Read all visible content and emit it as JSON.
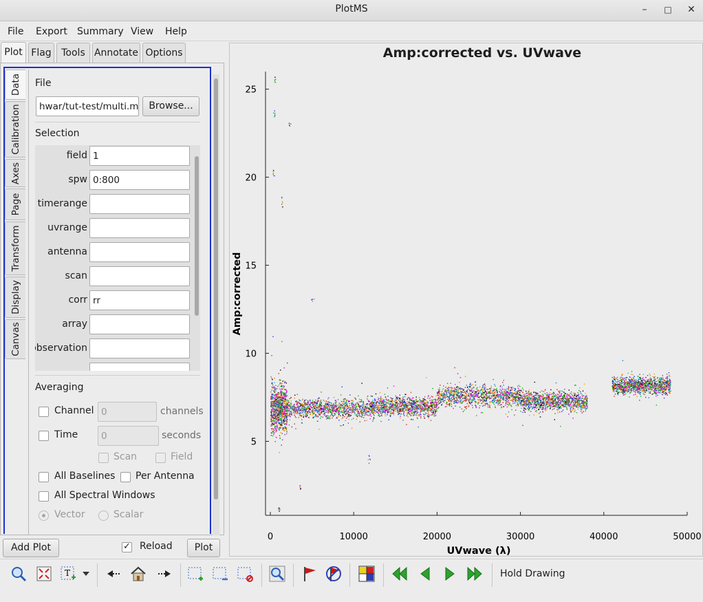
{
  "window": {
    "title": "PlotMS",
    "minimize": "–",
    "maximize": "□",
    "close": "✕"
  },
  "menu": [
    "File",
    "Export",
    "Summary",
    "View",
    "Help"
  ],
  "top_tabs": [
    "Plot",
    "Flag",
    "Tools",
    "Annotate",
    "Options"
  ],
  "side_tabs": [
    "Data",
    "Calibration",
    "Axes",
    "Page",
    "Transform",
    "Display",
    "Canvas"
  ],
  "data": {
    "file_section": "File",
    "file_value": "hwar/tut-test/multi.ms",
    "browse_label": "Browse...",
    "selection_section": "Selection",
    "selection": [
      {
        "label": "field",
        "value": "1"
      },
      {
        "label": "spw",
        "value": "0:800"
      },
      {
        "label": "timerange",
        "value": ""
      },
      {
        "label": "uvrange",
        "value": ""
      },
      {
        "label": "antenna",
        "value": ""
      },
      {
        "label": "scan",
        "value": ""
      },
      {
        "label": "corr",
        "value": "rr"
      },
      {
        "label": "array",
        "value": ""
      },
      {
        "label": "observation",
        "value": ""
      }
    ],
    "averaging_section": "Averaging",
    "channel_label": "Channel",
    "channel_value": "0",
    "channel_unit": "channels",
    "time_label": "Time",
    "time_value": "0",
    "time_unit": "seconds",
    "scan_label": "Scan",
    "field_label": "Field",
    "all_baselines_label": "All Baselines",
    "per_antenna_label": "Per Antenna",
    "all_spw_label": "All Spectral Windows",
    "vector_label": "Vector",
    "scalar_label": "Scalar"
  },
  "bottom": {
    "add_plot_label": "Add Plot",
    "reload_label": "Reload",
    "reload_checked": true,
    "plot_label": "Plot"
  },
  "toolbar": {
    "icons": [
      "zoom-icon",
      "pan-fit-icon",
      "annotate-text-icon",
      "dropdown-arrow-icon",
      "previous-view-icon",
      "home-icon",
      "next-view-icon",
      "mark-region-icon",
      "subtract-region-icon",
      "clear-regions-icon",
      "locate-icon",
      "flag-icon",
      "unflag-icon",
      "flag-extension-icon",
      "first-iteration-icon",
      "previous-iteration-icon",
      "next-iteration-icon",
      "last-iteration-icon"
    ],
    "hold_drawing_label": "Hold Drawing"
  },
  "chart_data": {
    "type": "scatter",
    "title": "Amp:corrected vs. UVwave",
    "xlabel": "UVwave (λ)",
    "ylabel": "Amp:corrected",
    "xlim": [
      0,
      50000
    ],
    "ylim": [
      0.8,
      26
    ],
    "xticks": [
      "0",
      "10000",
      "20000",
      "30000",
      "40000",
      "50000"
    ],
    "yticks": [
      "5",
      "10",
      "15",
      "20",
      "25"
    ],
    "series": [
      {
        "color": "multi",
        "bands": [
          {
            "x": [
              0,
              2000
            ],
            "y_center": 6.9,
            "y_spread": 2.2
          },
          {
            "x": [
              2000,
              12000
            ],
            "y_center": 6.9,
            "y_spread": 0.9
          },
          {
            "x": [
              12000,
              20000
            ],
            "y_center": 7.0,
            "y_spread": 0.9
          },
          {
            "x": [
              20000,
              30000
            ],
            "y_center": 7.6,
            "y_spread": 1.0
          },
          {
            "x": [
              30000,
              38000
            ],
            "y_center": 7.3,
            "y_spread": 0.9
          },
          {
            "x": [
              41000,
              48000
            ],
            "y_center": 8.2,
            "y_spread": 0.8
          }
        ],
        "outliers": [
          {
            "x": 500,
            "y": 25.5
          },
          {
            "x": 400,
            "y": 23.6
          },
          {
            "x": 300,
            "y": 20.3
          },
          {
            "x": 1400,
            "y": 18.6
          },
          {
            "x": 2300,
            "y": 23.0
          },
          {
            "x": 5000,
            "y": 13.0
          },
          {
            "x": 11800,
            "y": 4.0
          },
          {
            "x": 3500,
            "y": 2.4
          },
          {
            "x": 1000,
            "y": 1.2
          }
        ]
      }
    ],
    "palette": [
      "#000000",
      "#e41a1c",
      "#1a3fe4",
      "#2ca02c",
      "#e6a100",
      "#9b27b0",
      "#17becf",
      "#ff7f0e",
      "#8c564b",
      "#00c000",
      "#ff00ff",
      "#1f77b4"
    ],
    "grid": false
  }
}
